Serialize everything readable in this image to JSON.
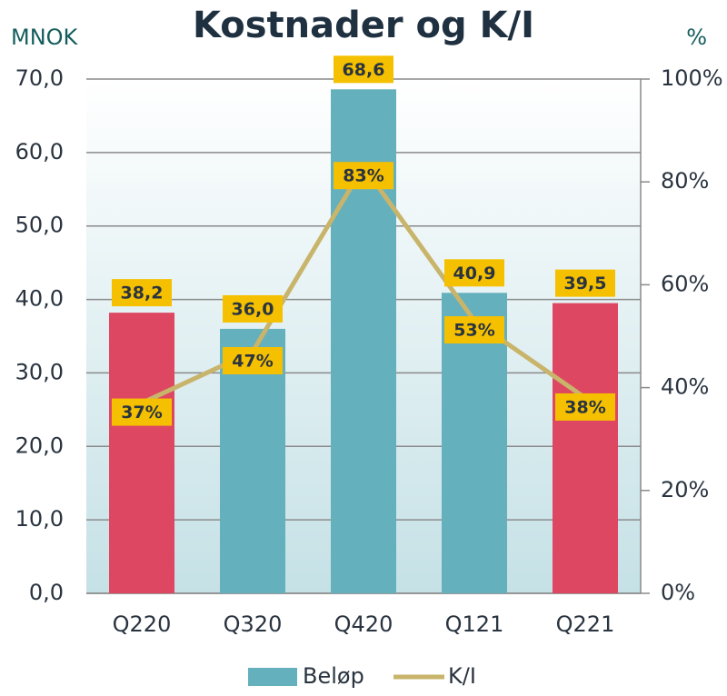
{
  "chart_data": {
    "type": "bar",
    "title": "Kostnader og K/I",
    "y_axis_title": "MNOK",
    "y2_axis_title": "%",
    "categories": [
      "Q220",
      "Q320",
      "Q420",
      "Q121",
      "Q221"
    ],
    "series": [
      {
        "name": "Beløp",
        "color": "#64b0bd",
        "colors": [
          "#de4762",
          "#64b0bd",
          "#64b0bd",
          "#64b0bd",
          "#de4762"
        ],
        "values": [
          38.2,
          36.0,
          68.6,
          40.9,
          39.5
        ],
        "value_labels": [
          "38,2",
          "36,0",
          "68,6",
          "40,9",
          "39,5"
        ]
      },
      {
        "name": "K/I",
        "type": "line",
        "color": "#c8b46a",
        "axis": "y2",
        "values": [
          37,
          47,
          83,
          53,
          38
        ],
        "value_labels": [
          "37%",
          "47%",
          "83%",
          "53%",
          "38%"
        ]
      }
    ],
    "ylim": [
      0,
      70
    ],
    "yticks": [
      {
        "value": 0,
        "label": "0,0"
      },
      {
        "value": 10,
        "label": "10,0"
      },
      {
        "value": 20,
        "label": "20,0"
      },
      {
        "value": 30,
        "label": "30,0"
      },
      {
        "value": 40,
        "label": "40,0"
      },
      {
        "value": 50,
        "label": "50,0"
      },
      {
        "value": 60,
        "label": "60,0"
      },
      {
        "value": 70,
        "label": "70,0"
      }
    ],
    "y2lim": [
      0,
      100
    ],
    "y2ticks": [
      {
        "value": 0,
        "label": "0%"
      },
      {
        "value": 20,
        "label": "20%"
      },
      {
        "value": 40,
        "label": "40%"
      },
      {
        "value": 60,
        "label": "60%"
      },
      {
        "value": 80,
        "label": "80%"
      },
      {
        "value": 100,
        "label": "100%"
      }
    ],
    "label_color": "#f5c000",
    "grid": true,
    "legend": "bottom"
  }
}
